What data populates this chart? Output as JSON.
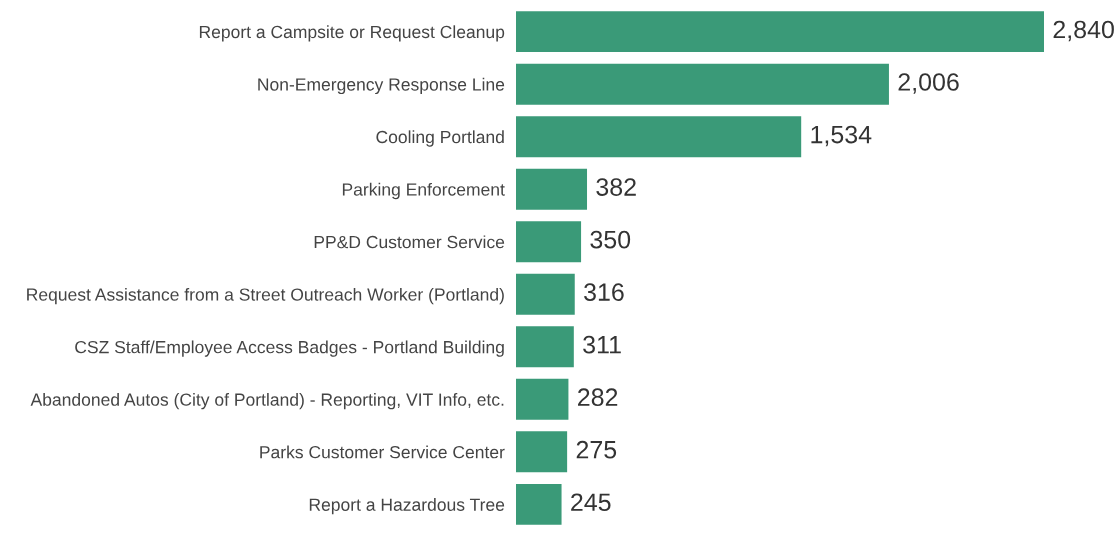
{
  "chart_data": {
    "type": "bar",
    "orientation": "horizontal",
    "categories": [
      "Report a Campsite or Request Cleanup",
      "Non-Emergency Response Line",
      "Cooling Portland",
      "Parking Enforcement",
      "PP&D Customer Service",
      "Request Assistance from a Street Outreach Worker (Portland)",
      "CSZ Staff/Employee Access Badges - Portland Building",
      "Abandoned Autos (City of Portland) - Reporting, VIT Info, etc.",
      "Parks Customer Service Center",
      "Report a Hazardous Tree"
    ],
    "values": [
      2840,
      2006,
      1534,
      382,
      350,
      316,
      311,
      282,
      275,
      245
    ],
    "value_labels": [
      "2,840",
      "2,006",
      "1,534",
      "382",
      "350",
      "316",
      "311",
      "282",
      "275",
      "245"
    ],
    "color": "#3a9a78",
    "tick_labels": "y",
    "grid": false,
    "legend": false
  }
}
